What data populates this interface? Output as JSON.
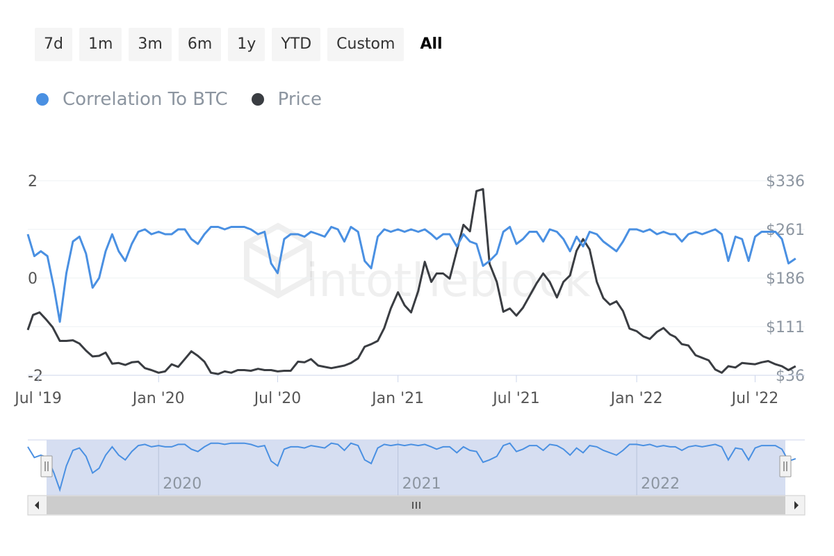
{
  "range_selector": {
    "buttons": [
      "7d",
      "1m",
      "3m",
      "6m",
      "1y",
      "YTD",
      "Custom",
      "All"
    ],
    "active": "All"
  },
  "legend": {
    "items": [
      {
        "label": "Correlation To BTC",
        "color": "#4a90e2"
      },
      {
        "label": "Price",
        "color": "#3a3d42"
      }
    ]
  },
  "watermark": "intotheblock",
  "chart_data": {
    "type": "line",
    "x_range": [
      "2019-06-15",
      "2022-09-15"
    ],
    "x_ticks": [
      {
        "date": "2019-07-01",
        "label": "Jul '19"
      },
      {
        "date": "2020-01-01",
        "label": "Jan '20"
      },
      {
        "date": "2020-07-01",
        "label": "Jul '20"
      },
      {
        "date": "2021-01-01",
        "label": "Jan '21"
      },
      {
        "date": "2021-07-01",
        "label": "Jul '21"
      },
      {
        "date": "2022-01-01",
        "label": "Jan '22"
      },
      {
        "date": "2022-07-01",
        "label": "Jul '22"
      }
    ],
    "y_left": {
      "range": [
        -2,
        2
      ],
      "ticks": [
        -2,
        0,
        2
      ],
      "tick_labels": [
        "-2",
        "0",
        "2"
      ]
    },
    "y_right": {
      "range": [
        36,
        336
      ],
      "ticks": [
        36,
        111,
        186,
        261,
        336
      ],
      "tick_labels": [
        "$36",
        "$111",
        "$186",
        "$261",
        "$336"
      ]
    },
    "grid": true,
    "series": [
      {
        "name": "Correlation To BTC",
        "axis": "left",
        "color": "#4a90e2",
        "points": [
          [
            "2019-06-15",
            0.9
          ],
          [
            "2019-06-25",
            0.45
          ],
          [
            "2019-07-05",
            0.55
          ],
          [
            "2019-07-15",
            0.45
          ],
          [
            "2019-07-25",
            -0.2
          ],
          [
            "2019-08-03",
            -0.9
          ],
          [
            "2019-08-13",
            0.1
          ],
          [
            "2019-08-23",
            0.75
          ],
          [
            "2019-09-02",
            0.85
          ],
          [
            "2019-09-12",
            0.5
          ],
          [
            "2019-09-22",
            -0.2
          ],
          [
            "2019-10-02",
            0.0
          ],
          [
            "2019-10-12",
            0.55
          ],
          [
            "2019-10-22",
            0.9
          ],
          [
            "2019-11-01",
            0.55
          ],
          [
            "2019-11-11",
            0.35
          ],
          [
            "2019-11-21",
            0.7
          ],
          [
            "2019-12-01",
            0.95
          ],
          [
            "2019-12-11",
            1.0
          ],
          [
            "2019-12-21",
            0.9
          ],
          [
            "2020-01-01",
            0.95
          ],
          [
            "2020-01-11",
            0.9
          ],
          [
            "2020-01-21",
            0.9
          ],
          [
            "2020-01-31",
            1.0
          ],
          [
            "2020-02-10",
            1.0
          ],
          [
            "2020-02-20",
            0.8
          ],
          [
            "2020-03-01",
            0.7
          ],
          [
            "2020-03-11",
            0.9
          ],
          [
            "2020-03-21",
            1.05
          ],
          [
            "2020-04-01",
            1.05
          ],
          [
            "2020-04-11",
            1.0
          ],
          [
            "2020-04-21",
            1.05
          ],
          [
            "2020-05-01",
            1.05
          ],
          [
            "2020-05-11",
            1.05
          ],
          [
            "2020-05-21",
            1.0
          ],
          [
            "2020-06-01",
            0.9
          ],
          [
            "2020-06-11",
            0.95
          ],
          [
            "2020-06-21",
            0.3
          ],
          [
            "2020-07-01",
            0.1
          ],
          [
            "2020-07-11",
            0.8
          ],
          [
            "2020-07-21",
            0.9
          ],
          [
            "2020-08-01",
            0.9
          ],
          [
            "2020-08-11",
            0.85
          ],
          [
            "2020-08-21",
            0.95
          ],
          [
            "2020-09-01",
            0.9
          ],
          [
            "2020-09-11",
            0.85
          ],
          [
            "2020-09-21",
            1.05
          ],
          [
            "2020-10-01",
            1.0
          ],
          [
            "2020-10-11",
            0.75
          ],
          [
            "2020-10-21",
            1.05
          ],
          [
            "2020-11-01",
            0.95
          ],
          [
            "2020-11-11",
            0.35
          ],
          [
            "2020-11-21",
            0.2
          ],
          [
            "2020-12-01",
            0.85
          ],
          [
            "2020-12-11",
            1.0
          ],
          [
            "2020-12-21",
            0.95
          ],
          [
            "2021-01-01",
            1.0
          ],
          [
            "2021-01-11",
            0.95
          ],
          [
            "2021-01-21",
            1.0
          ],
          [
            "2021-02-01",
            0.95
          ],
          [
            "2021-02-11",
            1.0
          ],
          [
            "2021-02-21",
            0.9
          ],
          [
            "2021-03-01",
            0.8
          ],
          [
            "2021-03-11",
            0.9
          ],
          [
            "2021-03-21",
            0.9
          ],
          [
            "2021-04-01",
            0.65
          ],
          [
            "2021-04-11",
            0.9
          ],
          [
            "2021-04-21",
            0.75
          ],
          [
            "2021-05-01",
            0.7
          ],
          [
            "2021-05-11",
            0.25
          ],
          [
            "2021-05-21",
            0.35
          ],
          [
            "2021-06-01",
            0.5
          ],
          [
            "2021-06-11",
            0.95
          ],
          [
            "2021-06-21",
            1.05
          ],
          [
            "2021-07-01",
            0.7
          ],
          [
            "2021-07-11",
            0.8
          ],
          [
            "2021-07-21",
            0.95
          ],
          [
            "2021-08-01",
            0.95
          ],
          [
            "2021-08-11",
            0.75
          ],
          [
            "2021-08-21",
            1.0
          ],
          [
            "2021-09-01",
            0.95
          ],
          [
            "2021-09-11",
            0.8
          ],
          [
            "2021-09-21",
            0.55
          ],
          [
            "2021-10-01",
            0.85
          ],
          [
            "2021-10-11",
            0.65
          ],
          [
            "2021-10-21",
            0.95
          ],
          [
            "2021-11-01",
            0.9
          ],
          [
            "2021-11-11",
            0.75
          ],
          [
            "2021-11-21",
            0.65
          ],
          [
            "2021-12-01",
            0.55
          ],
          [
            "2021-12-11",
            0.75
          ],
          [
            "2021-12-21",
            1.0
          ],
          [
            "2022-01-01",
            1.0
          ],
          [
            "2022-01-11",
            0.95
          ],
          [
            "2022-01-21",
            1.0
          ],
          [
            "2022-02-01",
            0.9
          ],
          [
            "2022-02-11",
            0.95
          ],
          [
            "2022-02-21",
            0.9
          ],
          [
            "2022-03-01",
            0.9
          ],
          [
            "2022-03-11",
            0.75
          ],
          [
            "2022-03-21",
            0.9
          ],
          [
            "2022-04-01",
            0.95
          ],
          [
            "2022-04-11",
            0.9
          ],
          [
            "2022-04-21",
            0.95
          ],
          [
            "2022-05-01",
            1.0
          ],
          [
            "2022-05-11",
            0.9
          ],
          [
            "2022-05-21",
            0.35
          ],
          [
            "2022-06-01",
            0.85
          ],
          [
            "2022-06-11",
            0.8
          ],
          [
            "2022-06-21",
            0.35
          ],
          [
            "2022-07-01",
            0.85
          ],
          [
            "2022-07-11",
            0.95
          ],
          [
            "2022-07-21",
            0.95
          ],
          [
            "2022-08-01",
            0.95
          ],
          [
            "2022-08-11",
            0.8
          ],
          [
            "2022-08-21",
            0.3
          ],
          [
            "2022-09-01",
            0.4
          ]
        ]
      },
      {
        "name": "Price",
        "axis": "right",
        "color": "#3a3d42",
        "points": [
          [
            "2019-06-15",
            106
          ],
          [
            "2019-06-23",
            129
          ],
          [
            "2019-07-03",
            133
          ],
          [
            "2019-07-13",
            122
          ],
          [
            "2019-07-23",
            110
          ],
          [
            "2019-08-03",
            89
          ],
          [
            "2019-08-13",
            89
          ],
          [
            "2019-08-23",
            90
          ],
          [
            "2019-09-02",
            85
          ],
          [
            "2019-09-12",
            74
          ],
          [
            "2019-09-22",
            65
          ],
          [
            "2019-10-02",
            66
          ],
          [
            "2019-10-12",
            71
          ],
          [
            "2019-10-22",
            54
          ],
          [
            "2019-11-01",
            55
          ],
          [
            "2019-11-11",
            52
          ],
          [
            "2019-11-21",
            56
          ],
          [
            "2019-12-01",
            57
          ],
          [
            "2019-12-11",
            47
          ],
          [
            "2019-12-21",
            44
          ],
          [
            "2020-01-01",
            40
          ],
          [
            "2020-01-11",
            42
          ],
          [
            "2020-01-21",
            53
          ],
          [
            "2020-01-31",
            49
          ],
          [
            "2020-02-10",
            61
          ],
          [
            "2020-02-20",
            73
          ],
          [
            "2020-03-01",
            66
          ],
          [
            "2020-03-11",
            57
          ],
          [
            "2020-03-21",
            40
          ],
          [
            "2020-04-01",
            38
          ],
          [
            "2020-04-11",
            42
          ],
          [
            "2020-04-21",
            40
          ],
          [
            "2020-05-01",
            44
          ],
          [
            "2020-05-11",
            44
          ],
          [
            "2020-05-21",
            43
          ],
          [
            "2020-06-01",
            46
          ],
          [
            "2020-06-11",
            44
          ],
          [
            "2020-06-21",
            44
          ],
          [
            "2020-07-01",
            42
          ],
          [
            "2020-07-11",
            43
          ],
          [
            "2020-07-21",
            43
          ],
          [
            "2020-08-01",
            57
          ],
          [
            "2020-08-11",
            56
          ],
          [
            "2020-08-21",
            61
          ],
          [
            "2020-09-01",
            51
          ],
          [
            "2020-09-11",
            49
          ],
          [
            "2020-09-21",
            47
          ],
          [
            "2020-10-01",
            49
          ],
          [
            "2020-10-11",
            51
          ],
          [
            "2020-10-21",
            55
          ],
          [
            "2020-11-01",
            62
          ],
          [
            "2020-11-11",
            80
          ],
          [
            "2020-11-21",
            84
          ],
          [
            "2020-12-01",
            89
          ],
          [
            "2020-12-11",
            109
          ],
          [
            "2020-12-21",
            139
          ],
          [
            "2021-01-01",
            164
          ],
          [
            "2021-01-11",
            144
          ],
          [
            "2021-01-21",
            133
          ],
          [
            "2021-02-01",
            166
          ],
          [
            "2021-02-11",
            211
          ],
          [
            "2021-02-21",
            180
          ],
          [
            "2021-03-01",
            193
          ],
          [
            "2021-03-11",
            193
          ],
          [
            "2021-03-21",
            185
          ],
          [
            "2021-04-01",
            228
          ],
          [
            "2021-04-11",
            268
          ],
          [
            "2021-04-21",
            258
          ],
          [
            "2021-05-01",
            320
          ],
          [
            "2021-05-11",
            323
          ],
          [
            "2021-05-21",
            208
          ],
          [
            "2021-06-01",
            180
          ],
          [
            "2021-06-11",
            134
          ],
          [
            "2021-06-21",
            139
          ],
          [
            "2021-07-01",
            128
          ],
          [
            "2021-07-11",
            140
          ],
          [
            "2021-07-21",
            158
          ],
          [
            "2021-08-01",
            178
          ],
          [
            "2021-08-11",
            193
          ],
          [
            "2021-08-21",
            180
          ],
          [
            "2021-09-01",
            156
          ],
          [
            "2021-09-11",
            180
          ],
          [
            "2021-09-21",
            190
          ],
          [
            "2021-10-01",
            228
          ],
          [
            "2021-10-11",
            246
          ],
          [
            "2021-10-21",
            230
          ],
          [
            "2021-11-01",
            180
          ],
          [
            "2021-11-11",
            155
          ],
          [
            "2021-11-21",
            145
          ],
          [
            "2021-12-01",
            150
          ],
          [
            "2021-12-11",
            135
          ],
          [
            "2021-12-21",
            108
          ],
          [
            "2022-01-01",
            104
          ],
          [
            "2022-01-11",
            96
          ],
          [
            "2022-01-21",
            92
          ],
          [
            "2022-02-01",
            103
          ],
          [
            "2022-02-11",
            109
          ],
          [
            "2022-02-21",
            99
          ],
          [
            "2022-03-01",
            95
          ],
          [
            "2022-03-11",
            84
          ],
          [
            "2022-03-21",
            82
          ],
          [
            "2022-04-01",
            67
          ],
          [
            "2022-04-11",
            63
          ],
          [
            "2022-04-21",
            59
          ],
          [
            "2022-05-01",
            45
          ],
          [
            "2022-05-11",
            40
          ],
          [
            "2022-05-21",
            50
          ],
          [
            "2022-06-01",
            48
          ],
          [
            "2022-06-11",
            55
          ],
          [
            "2022-06-21",
            54
          ],
          [
            "2022-07-01",
            53
          ],
          [
            "2022-07-11",
            56
          ],
          [
            "2022-07-21",
            58
          ],
          [
            "2022-08-01",
            53
          ],
          [
            "2022-08-11",
            50
          ],
          [
            "2022-08-21",
            44
          ],
          [
            "2022-09-01",
            50
          ]
        ]
      }
    ],
    "navigator": {
      "series": "Correlation To BTC",
      "year_labels": [
        {
          "date": "2020-01-01",
          "label": "2020"
        },
        {
          "date": "2021-01-01",
          "label": "2021"
        },
        {
          "date": "2022-01-01",
          "label": "2022"
        }
      ]
    }
  }
}
